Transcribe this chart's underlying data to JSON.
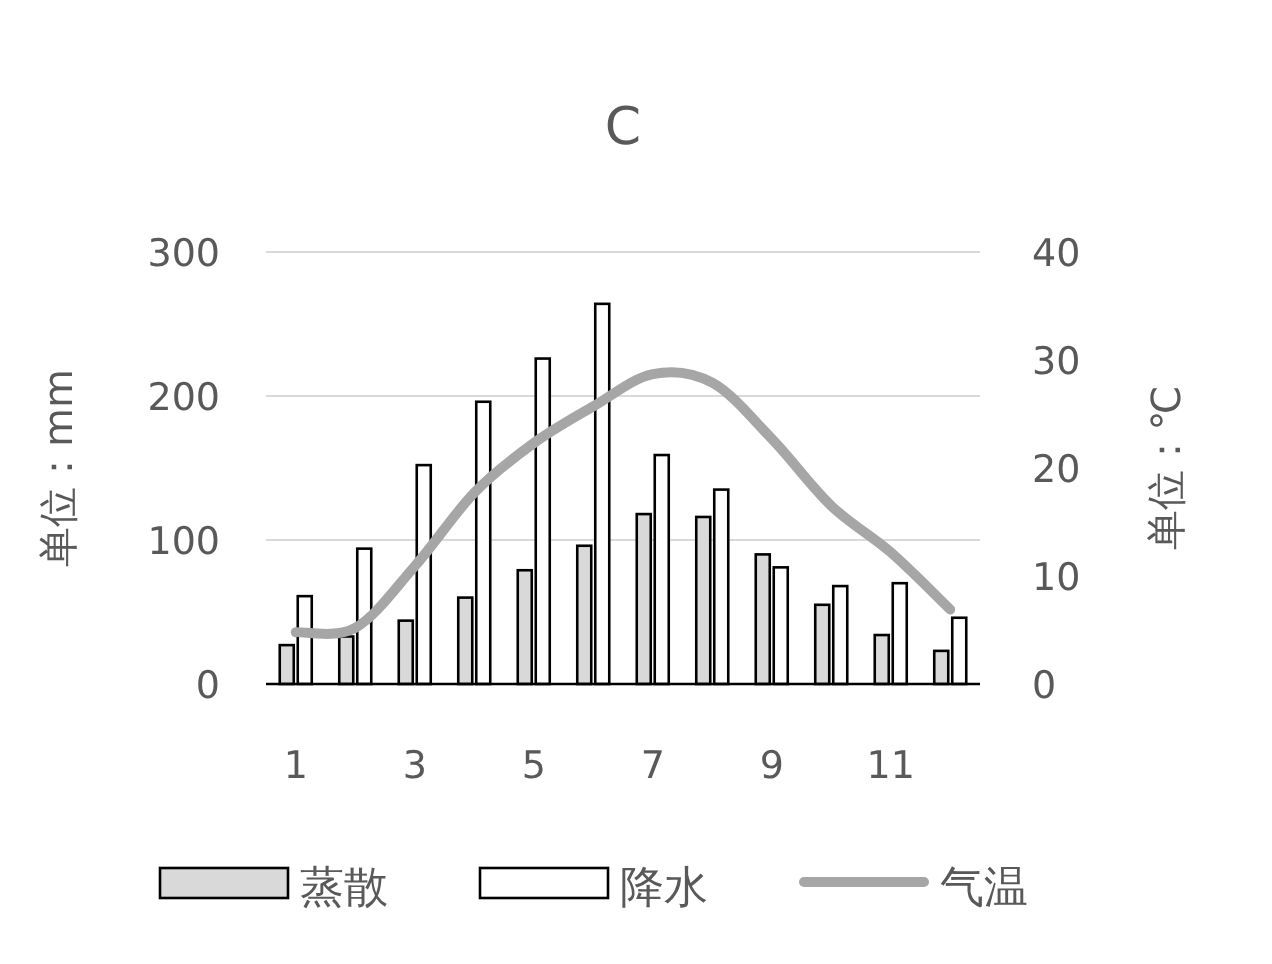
{
  "chart_data": {
    "type": "bar",
    "title": "C",
    "ylabel": "单位：mm",
    "y2label": "单位：℃",
    "categories": [
      "1",
      null,
      "3",
      null,
      "5",
      null,
      "7",
      null,
      "9",
      null,
      "11",
      null
    ],
    "series": [
      {
        "name": "蒸散",
        "color": "#d9d9d9",
        "values": [
          27,
          33,
          44,
          60,
          79,
          96,
          118,
          116,
          90,
          55,
          34,
          23
        ]
      },
      {
        "name": "降水",
        "color": "#ffffff",
        "values": [
          61,
          94,
          152,
          196,
          226,
          264,
          159,
          135,
          81,
          68,
          70,
          46
        ]
      },
      {
        "name": "气温",
        "type": "line",
        "axis": "y2",
        "color": "#a6a6a6",
        "values": [
          4.8,
          5.2,
          10.9,
          17.7,
          22.3,
          25.7,
          28.7,
          27.9,
          22.7,
          16.5,
          12.2,
          6.9
        ]
      }
    ],
    "ylim": [
      0,
      300
    ],
    "yticks": [
      0,
      100,
      200,
      300
    ],
    "y2lim": [
      0,
      40
    ],
    "y2ticks": [
      0,
      10,
      20,
      30,
      40
    ],
    "grid": "y",
    "legend": "bottom"
  }
}
